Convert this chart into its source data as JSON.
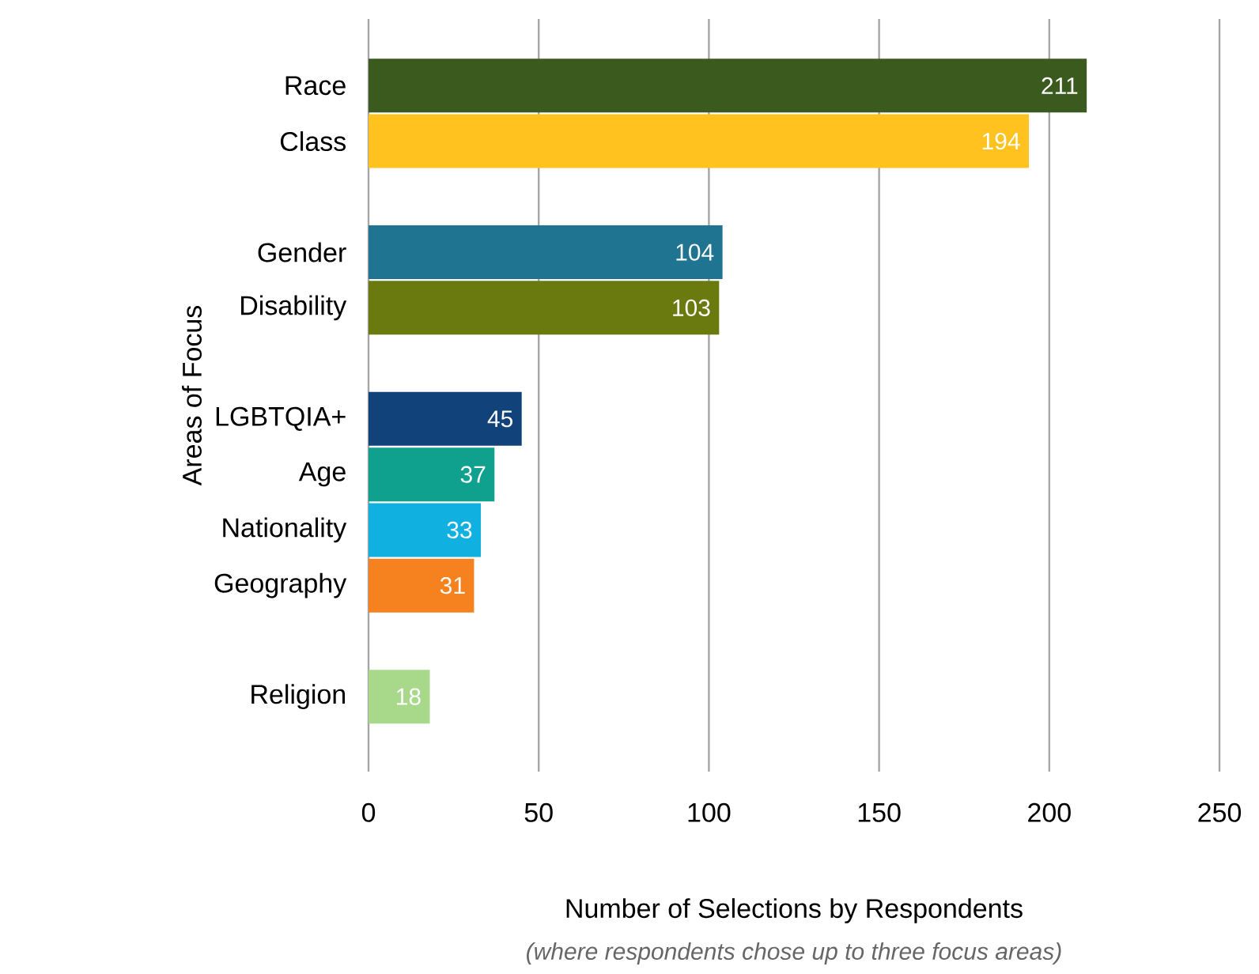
{
  "chart_data": {
    "type": "bar",
    "orientation": "horizontal",
    "xlabel": "Number of Selections by Respondents",
    "ylabel": "Areas of Focus",
    "annotations": [
      "(where respondents chose up to three focus areas)"
    ],
    "categories": [
      "Race",
      "Class",
      null,
      "Gender",
      "Disability",
      null,
      "LGBTQIA+",
      "Age",
      "Nationality",
      "Geography",
      null,
      "Religion"
    ],
    "values": [
      211,
      194,
      null,
      104,
      103,
      null,
      45,
      37,
      33,
      31,
      null,
      18
    ],
    "colors": [
      "#3a5a1e",
      "#ffc21f",
      "#ffffff",
      "#1f7591",
      "#6b7a0f",
      "#ffffff",
      "#12427a",
      "#0fa08e",
      "#10b0e0",
      "#f5821f",
      "#ffffff",
      "#a8d88a"
    ],
    "xlim": [
      0,
      250
    ],
    "xticks": [
      0,
      50,
      100,
      150,
      200,
      250
    ],
    "grid": "x",
    "data_labels": true
  }
}
